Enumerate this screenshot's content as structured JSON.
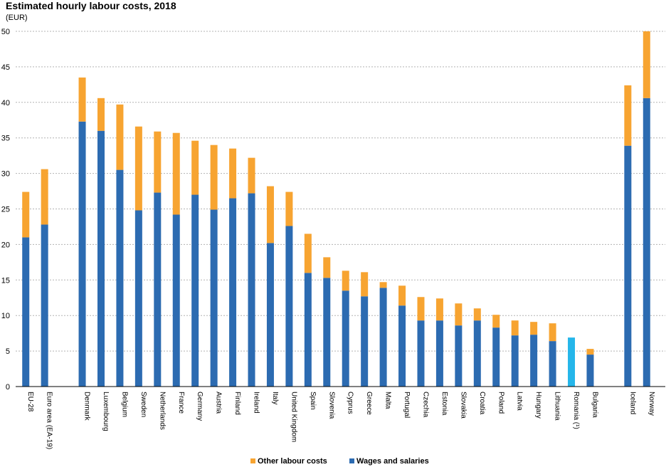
{
  "title": "Estimated hourly labour costs, 2018",
  "unit": "(EUR)",
  "colors": {
    "other": "#f7a431",
    "wages": "#2c6bb1",
    "highlight": "#25b6ea",
    "grid": "#b3b3b3",
    "axis": "#000000"
  },
  "chart_data": {
    "type": "bar",
    "stacked": true,
    "title": "Estimated hourly labour costs, 2018",
    "ylabel": "(EUR)",
    "ylim": [
      0,
      50
    ],
    "yticks": [
      0,
      5,
      10,
      15,
      20,
      25,
      30,
      35,
      40,
      45,
      50
    ],
    "grid": true,
    "legend_position": "bottom",
    "categories": [
      "EU-28",
      "Euro area (EA-19)",
      "Denmark",
      "Luxembourg",
      "Belgium",
      "Sweden",
      "Netherlands",
      "France",
      "Germany",
      "Austria",
      "Finland",
      "Ireland",
      "Italy",
      "United Kingdom",
      "Spain",
      "Slovenia",
      "Cyprus",
      "Greece",
      "Malta",
      "Portugal",
      "Czechia",
      "Estonia",
      "Slovakia",
      "Croatia",
      "Poland",
      "Latvia",
      "Hungary",
      "Lithuania",
      "Romania (¹)",
      "Bulgaria",
      "Iceland",
      "Norway"
    ],
    "groups": [
      [
        "EU-28",
        "Euro area (EA-19)"
      ],
      [
        "Denmark",
        "Luxembourg",
        "Belgium",
        "Sweden",
        "Netherlands",
        "France",
        "Germany",
        "Austria",
        "Finland",
        "Ireland",
        "Italy",
        "United Kingdom",
        "Spain",
        "Slovenia",
        "Cyprus",
        "Greece",
        "Malta",
        "Portugal",
        "Czechia",
        "Estonia",
        "Slovakia",
        "Croatia",
        "Poland",
        "Latvia",
        "Hungary",
        "Lithuania",
        "Romania (¹)",
        "Bulgaria"
      ],
      [
        "Iceland",
        "Norway"
      ]
    ],
    "series": [
      {
        "name": "Wages and salaries",
        "values": [
          21.0,
          22.8,
          37.3,
          36.0,
          30.5,
          24.8,
          27.3,
          24.2,
          27.0,
          24.9,
          26.5,
          27.2,
          20.2,
          22.6,
          16.0,
          15.3,
          13.5,
          12.7,
          13.9,
          11.4,
          9.3,
          9.3,
          8.6,
          9.3,
          8.3,
          7.2,
          7.3,
          6.4,
          6.9,
          4.5,
          33.9,
          40.6
        ]
      },
      {
        "name": "Other labour costs",
        "values": [
          6.4,
          7.8,
          6.2,
          4.6,
          9.2,
          11.8,
          8.6,
          11.5,
          7.6,
          9.1,
          7.0,
          5.0,
          8.0,
          4.8,
          5.5,
          2.9,
          2.8,
          3.4,
          0.8,
          2.8,
          3.3,
          3.1,
          3.1,
          1.7,
          1.8,
          2.1,
          1.8,
          2.5,
          0.0,
          0.8,
          8.5,
          9.4
        ]
      }
    ],
    "highlighted": [
      "Romania (¹)"
    ]
  }
}
